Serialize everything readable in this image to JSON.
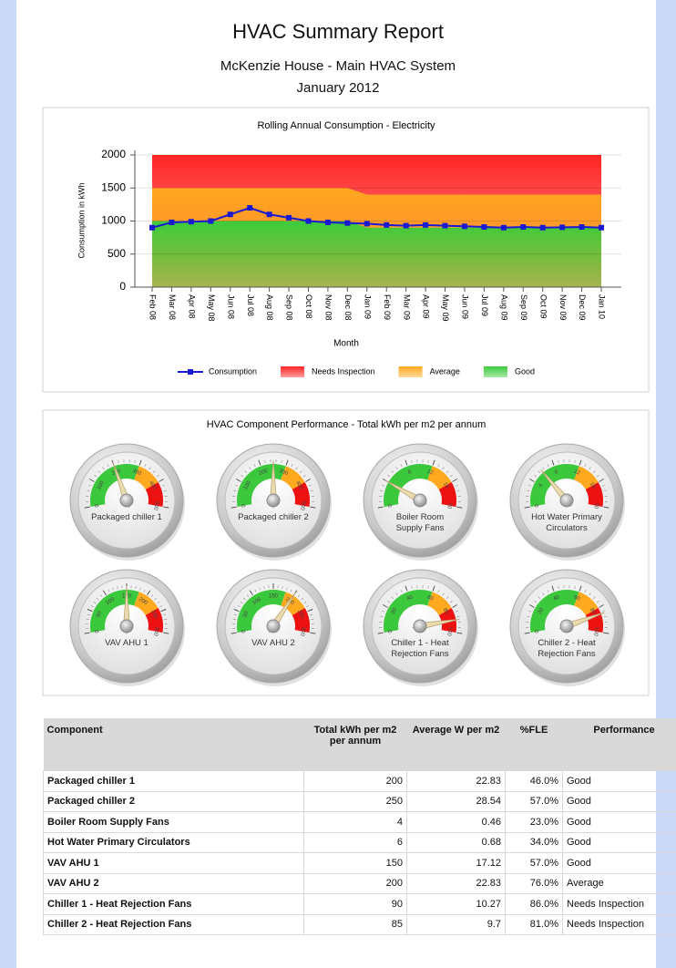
{
  "header": {
    "title": "HVAC Summary Report",
    "subtitle": "McKenzie House - Main HVAC System",
    "period": "January 2012"
  },
  "chart_data": {
    "type": "line",
    "title": "Rolling Annual Consumption - Electricity",
    "x_label": "Month",
    "y_label": "Consumption in kWh",
    "categories": [
      "Feb 08",
      "Mar 08",
      "Apr 08",
      "May 08",
      "Jun 08",
      "Jul 08",
      "Aug 08",
      "Sep 08",
      "Oct 08",
      "Nov 08",
      "Dec 08",
      "Jan 09",
      "Feb 09",
      "Mar 09",
      "Apr 09",
      "May 09",
      "Jun 09",
      "Jul 09",
      "Aug 09",
      "Sep 09",
      "Oct 09",
      "Nov 09",
      "Dec 09",
      "Jan 10"
    ],
    "series": [
      {
        "name": "Consumption",
        "kind": "line",
        "color": "#1a1ad0",
        "values": [
          900,
          980,
          990,
          1000,
          1100,
          1200,
          1100,
          1050,
          1000,
          980,
          970,
          960,
          940,
          930,
          940,
          930,
          920,
          910,
          900,
          910,
          900,
          905,
          910,
          900
        ]
      },
      {
        "name": "Needs Inspection",
        "kind": "area",
        "color": "#ff2424",
        "values": [
          2000,
          2000,
          2000,
          2000,
          2000,
          2000,
          2000,
          2000,
          2000,
          2000,
          2000,
          2000,
          2000,
          2000,
          2000,
          2000,
          2000,
          2000,
          2000,
          2000,
          2000,
          2000,
          2000,
          2000
        ]
      },
      {
        "name": "Average",
        "kind": "area",
        "color": "#ffa81e",
        "values": [
          1500,
          1500,
          1500,
          1500,
          1500,
          1500,
          1500,
          1500,
          1500,
          1500,
          1500,
          1400,
          1400,
          1400,
          1400,
          1400,
          1400,
          1400,
          1400,
          1400,
          1400,
          1400,
          1400,
          1400
        ]
      },
      {
        "name": "Good",
        "kind": "area",
        "color": "#3ccc3c",
        "values": [
          1000,
          1000,
          1000,
          1000,
          1000,
          1000,
          1000,
          1000,
          1000,
          1000,
          1000,
          900,
          900,
          900,
          900,
          900,
          900,
          900,
          900,
          900,
          900,
          900,
          900,
          900
        ]
      }
    ],
    "ylim": [
      0,
      2000
    ],
    "yticks": [
      0,
      500,
      1000,
      1500,
      2000
    ],
    "grid": true,
    "legend": "bottom"
  },
  "gauges": {
    "title": "HVAC Component Performance - Total kWh per m2 per annum",
    "band_colors": [
      "#3cc83c",
      "#ffaa1e",
      "#ee1111"
    ],
    "items": [
      {
        "name": "Packaged chiller 1",
        "value": 200,
        "lim": [
          0,
          500
        ],
        "ticks": [
          0,
          100,
          200,
          300,
          400,
          500
        ],
        "bands": [
          300,
          400
        ]
      },
      {
        "name": "Packaged chiller 2",
        "value": 250,
        "lim": [
          0,
          500
        ],
        "ticks": [
          0,
          100,
          200,
          300,
          400,
          500
        ],
        "bands": [
          300,
          400
        ]
      },
      {
        "name": "Boiler Room Supply Fans",
        "value": 4,
        "lim": [
          0,
          20
        ],
        "ticks": [
          0,
          4,
          8,
          12,
          16,
          20
        ],
        "bands": [
          12,
          16
        ]
      },
      {
        "name": "Hot Water Primary Circulators",
        "value": 6,
        "lim": [
          0,
          20
        ],
        "ticks": [
          0,
          4,
          8,
          12,
          16,
          20
        ],
        "bands": [
          12,
          16
        ]
      },
      {
        "name": "VAV AHU 1",
        "value": 150,
        "lim": [
          0,
          300
        ],
        "ticks": [
          0,
          50,
          100,
          150,
          200,
          250,
          300
        ],
        "bands": [
          180,
          240
        ]
      },
      {
        "name": "VAV AHU 2",
        "value": 200,
        "lim": [
          0,
          300
        ],
        "ticks": [
          0,
          50,
          100,
          150,
          200,
          250,
          300
        ],
        "bands": [
          180,
          240
        ]
      },
      {
        "name": "Chiller 1 - Heat Rejection Fans",
        "value": 90,
        "lim": [
          0,
          100
        ],
        "ticks": [
          0,
          20,
          40,
          60,
          80,
          100
        ],
        "bands": [
          60,
          80
        ]
      },
      {
        "name": "Chiller 2 - Heat Rejection Fans",
        "value": 85,
        "lim": [
          0,
          100
        ],
        "ticks": [
          0,
          20,
          40,
          60,
          80,
          100
        ],
        "bands": [
          60,
          80
        ]
      }
    ]
  },
  "table": {
    "columns": [
      "Component",
      "Total kWh per m2 per annum",
      "Average W per m2",
      "%FLE",
      "Performance"
    ],
    "rows": [
      [
        "Packaged chiller 1",
        "200",
        "22.83",
        "46.0%",
        "Good"
      ],
      [
        "Packaged chiller 2",
        "250",
        "28.54",
        "57.0%",
        "Good"
      ],
      [
        "Boiler Room Supply Fans",
        "4",
        "0.46",
        "23.0%",
        "Good"
      ],
      [
        "Hot Water Primary Circulators",
        "6",
        "0.68",
        "34.0%",
        "Good"
      ],
      [
        "VAV AHU 1",
        "150",
        "17.12",
        "57.0%",
        "Good"
      ],
      [
        "VAV AHU 2",
        "200",
        "22.83",
        "76.0%",
        "Average"
      ],
      [
        "Chiller 1 - Heat Rejection Fans",
        "90",
        "10.27",
        "86.0%",
        "Needs Inspection"
      ],
      [
        "Chiller 2 - Heat Rejection Fans",
        "85",
        "9.7",
        "81.0%",
        "Needs Inspection"
      ]
    ]
  }
}
